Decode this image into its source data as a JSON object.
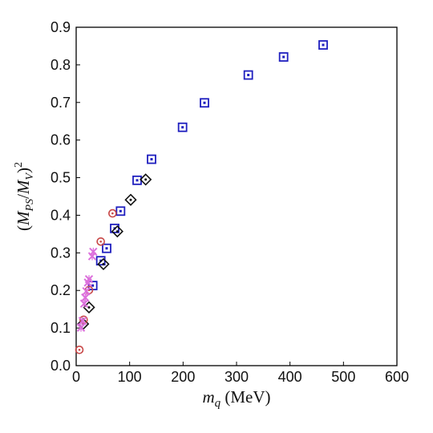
{
  "chart_data": {
    "type": "scatter",
    "xlabel": {
      "var": "m",
      "sub": "q",
      "unit": " (MeV)"
    },
    "ylabel": {
      "open": "(",
      "m1": "M",
      "s1": "PS",
      "slash": "/",
      "m2": "M",
      "s2": "V",
      "close": ")",
      "pow": "2"
    },
    "xlim": [
      0,
      600
    ],
    "ylim": [
      0.0,
      0.9
    ],
    "xticks": [
      "0",
      "100",
      "200",
      "300",
      "400",
      "500",
      "600"
    ],
    "yticks": [
      "0.0",
      "0.1",
      "0.2",
      "0.3",
      "0.4",
      "0.5",
      "0.6",
      "0.7",
      "0.8",
      "0.9"
    ],
    "grid": false,
    "series": [
      {
        "marker": "square-dot",
        "color": "#1f1fbf",
        "x": [
          462,
          388,
          322,
          240,
          199,
          141,
          114,
          83,
          72,
          57,
          46,
          31
        ],
        "y": [
          0.853,
          0.821,
          0.773,
          0.699,
          0.634,
          0.549,
          0.493,
          0.411,
          0.365,
          0.312,
          0.279,
          0.213
        ]
      },
      {
        "marker": "diamond-dot",
        "color": "#111111",
        "x": [
          130,
          102,
          77,
          51,
          24,
          13
        ],
        "y": [
          0.495,
          0.441,
          0.357,
          0.27,
          0.155,
          0.111
        ]
      },
      {
        "marker": "circle-dot",
        "color": "#c84848",
        "x": [
          68,
          46,
          24,
          14,
          6
        ],
        "y": [
          0.405,
          0.33,
          0.201,
          0.122,
          0.042
        ]
      },
      {
        "marker": "cross",
        "color": "#dc70dc",
        "x": [
          32,
          30,
          24,
          22,
          19,
          17,
          15,
          12,
          9
        ],
        "y": [
          0.303,
          0.291,
          0.23,
          0.221,
          0.198,
          0.181,
          0.165,
          0.119,
          0.101
        ]
      }
    ]
  }
}
